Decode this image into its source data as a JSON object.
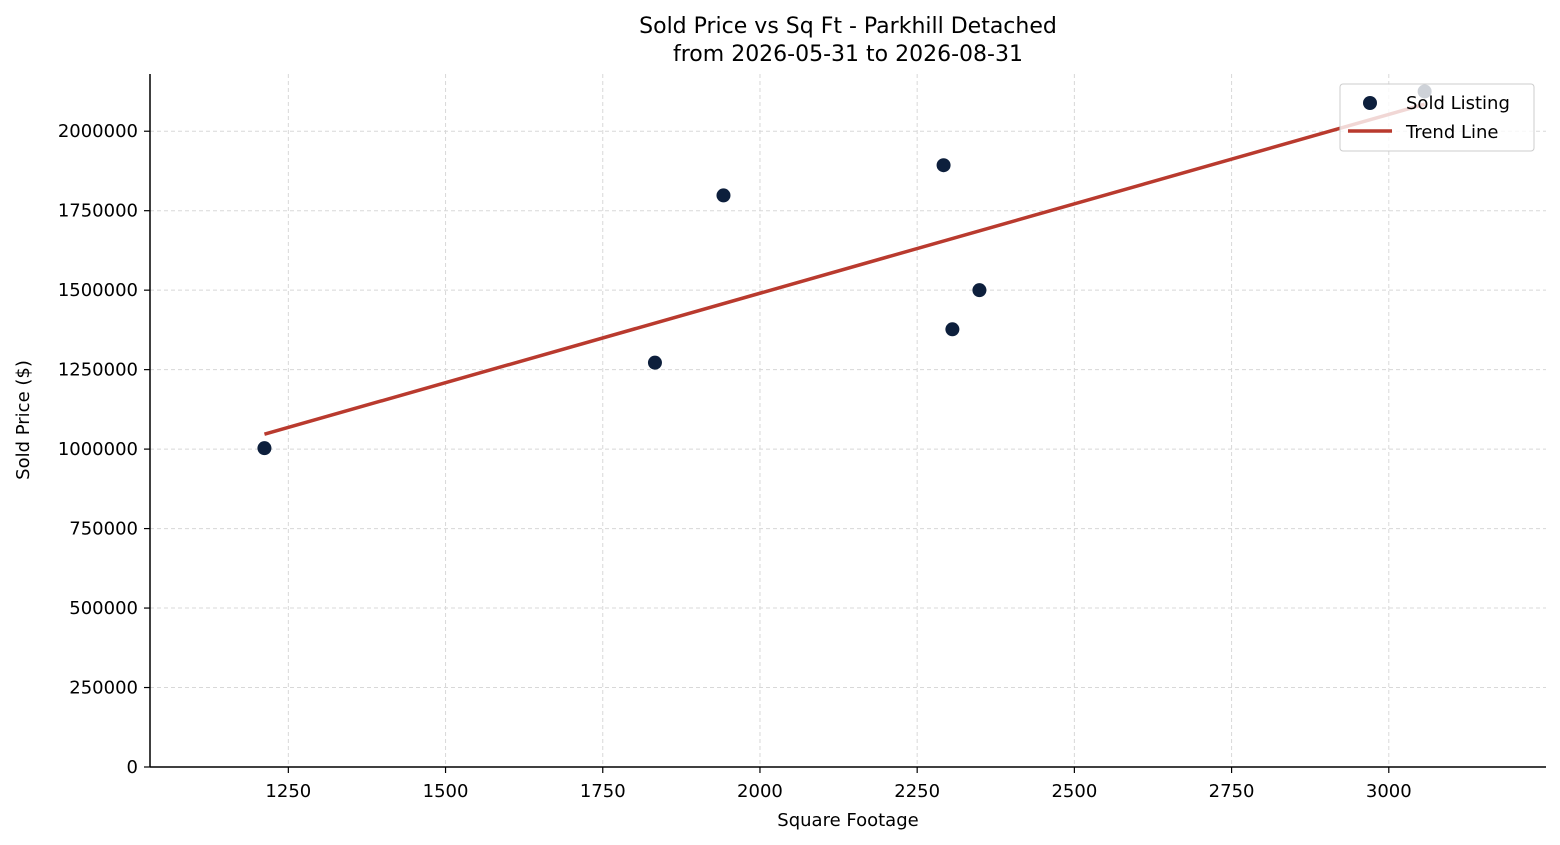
{
  "chart_data": {
    "type": "scatter",
    "title": "Sold Price vs Sq Ft - Parkhill Detached",
    "subtitle": "from 2026-05-31 to 2026-08-31",
    "xlabel": "Square Footage",
    "ylabel": "Sold Price ($)",
    "xlim": [
      1030,
      3250
    ],
    "ylim": [
      0,
      2180000
    ],
    "x_ticks": [
      1250,
      1500,
      1750,
      2000,
      2250,
      2500,
      2750,
      3000
    ],
    "y_ticks": [
      0,
      250000,
      500000,
      750000,
      1000000,
      1250000,
      1500000,
      1750000,
      2000000
    ],
    "x_tick_labels": [
      "1250",
      "1500",
      "1750",
      "2000",
      "2250",
      "2500",
      "2750",
      "3000"
    ],
    "y_tick_labels": [
      "0",
      "250000",
      "500000",
      "750000",
      "1000000",
      "1250000",
      "1500000",
      "1750000",
      "2000000"
    ],
    "grid": true,
    "legend_position": "top-right",
    "series": [
      {
        "name": "Sold Listing",
        "kind": "scatter",
        "color": "#0d1f3c",
        "points": [
          {
            "x": 1212,
            "y": 1003000
          },
          {
            "x": 1833,
            "y": 1272000
          },
          {
            "x": 1942,
            "y": 1798000
          },
          {
            "x": 2292,
            "y": 1893000
          },
          {
            "x": 2306,
            "y": 1377000
          },
          {
            "x": 2349,
            "y": 1500000
          },
          {
            "x": 3057,
            "y": 2125000
          }
        ]
      },
      {
        "name": "Trend Line",
        "kind": "line",
        "color": "#b93a2e",
        "points": [
          {
            "x": 1212,
            "y": 1047000
          },
          {
            "x": 3057,
            "y": 2085000
          }
        ]
      }
    ]
  },
  "legend": {
    "items": [
      {
        "label": "Sold Listing",
        "color": "#0d1f3c",
        "marker": "circle"
      },
      {
        "label": "Trend Line",
        "color": "#b93a2e",
        "marker": "line"
      }
    ]
  }
}
